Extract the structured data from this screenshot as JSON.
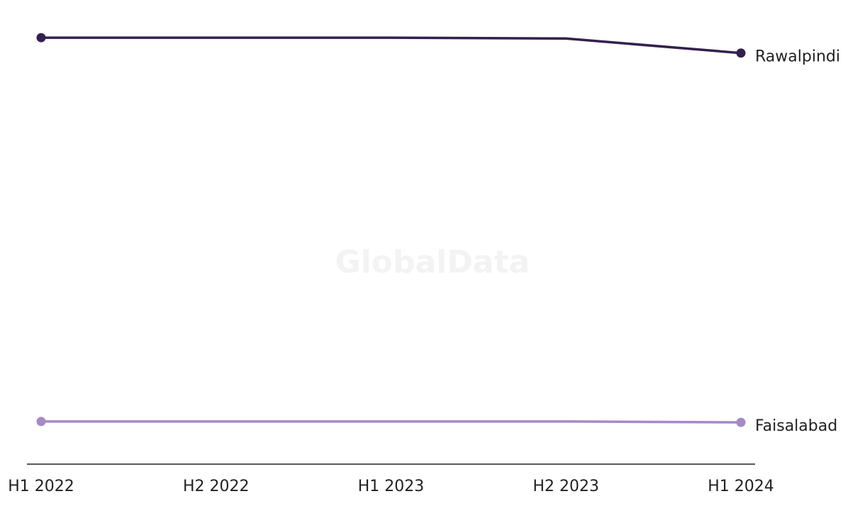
{
  "chart_data": {
    "type": "line",
    "watermark": "GlobalData",
    "categories": [
      "H1 2022",
      "H2 2022",
      "H1 2023",
      "H2 2023",
      "H1 2024"
    ],
    "series": [
      {
        "name": "Rawalpindi",
        "color": "#33204f",
        "values": [
          100,
          100,
          100,
          99.8,
          96.4
        ]
      },
      {
        "name": "Faisalabad",
        "color": "#a58bc4",
        "values": [
          10,
          10,
          10,
          10,
          9.8
        ]
      }
    ],
    "ylim": [
      0,
      110
    ]
  }
}
